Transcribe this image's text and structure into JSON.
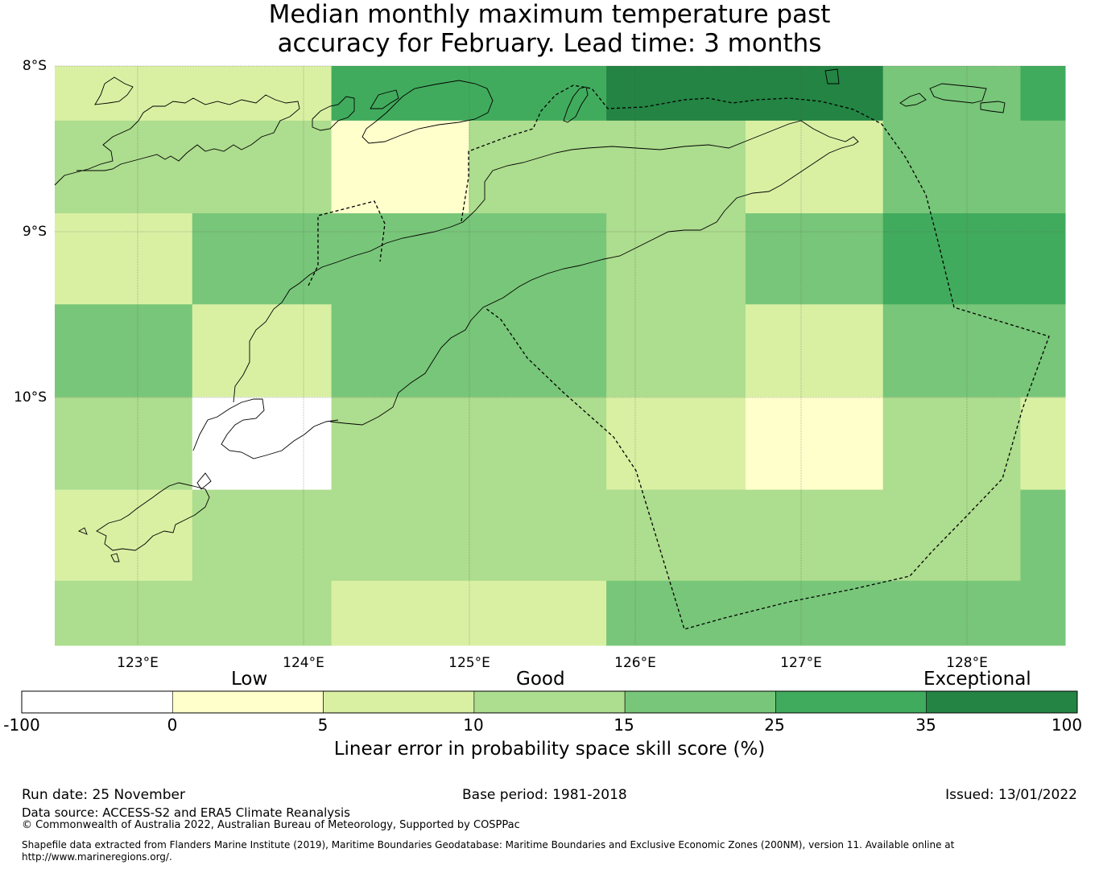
{
  "title": {
    "line1": "Median monthly maximum temperature past",
    "line2": "accuracy for February. Lead time: 3 months"
  },
  "map": {
    "lat_labels": [
      "8°S",
      "9°S",
      "10°S"
    ],
    "lon_labels": [
      "123°E",
      "124°E",
      "125°E",
      "126°E",
      "127°E",
      "128°E"
    ],
    "lon_range": [
      122.5,
      128.6
    ],
    "lat_range": [
      -8.0,
      -11.5
    ],
    "grid_lon_edges": [
      122.5,
      123.33,
      124.17,
      125.0,
      125.83,
      126.67,
      127.5,
      128.33,
      128.6
    ],
    "grid_lat_edges": [
      -8.0,
      -8.33,
      -8.89,
      -9.44,
      -10.0,
      -10.56,
      -11.11,
      -11.5
    ],
    "grid_classes": [
      [
        2,
        2,
        5,
        5,
        6,
        6,
        4,
        5
      ],
      [
        3,
        3,
        1,
        3,
        3,
        2,
        4,
        4
      ],
      [
        2,
        4,
        4,
        4,
        3,
        4,
        5,
        5
      ],
      [
        4,
        2,
        4,
        4,
        3,
        2,
        4,
        4
      ],
      [
        3,
        0,
        3,
        3,
        2,
        1,
        3,
        2
      ],
      [
        2,
        3,
        3,
        3,
        3,
        3,
        3,
        4
      ],
      [
        3,
        3,
        2,
        2,
        4,
        4,
        4,
        4
      ]
    ]
  },
  "colorbar": {
    "category_labels": [
      "Low",
      "Good",
      "Exceptional"
    ],
    "ticks": [
      "-100",
      "0",
      "5",
      "10",
      "15",
      "25",
      "35",
      "100"
    ],
    "colors": [
      "#ffffff",
      "#ffffcc",
      "#d9f0a3",
      "#addd8e",
      "#78c679",
      "#41ab5d",
      "#238443"
    ],
    "title": "Linear error in probability space skill score (%)"
  },
  "footer": {
    "run_date": "Run date: 25 November",
    "base_period": "Base period: 1981-2018",
    "issued": "Issued: 13/01/2022",
    "data_source": "Data source: ACCESS-S2 and ERA5 Climate Reanalysis",
    "copyright": "© Commonwealth of Australia 2022, Australian Bureau of Meteorology, Supported by COSPPac",
    "shapefile_line1": "Shapefile data extracted from Flanders Marine Institute (2019), Maritime Boundaries Geodatabase: Maritime Boundaries and Exclusive Economic Zones (200NM), version 11. Available online at",
    "shapefile_line2": "http://www.marineregions.org/."
  }
}
